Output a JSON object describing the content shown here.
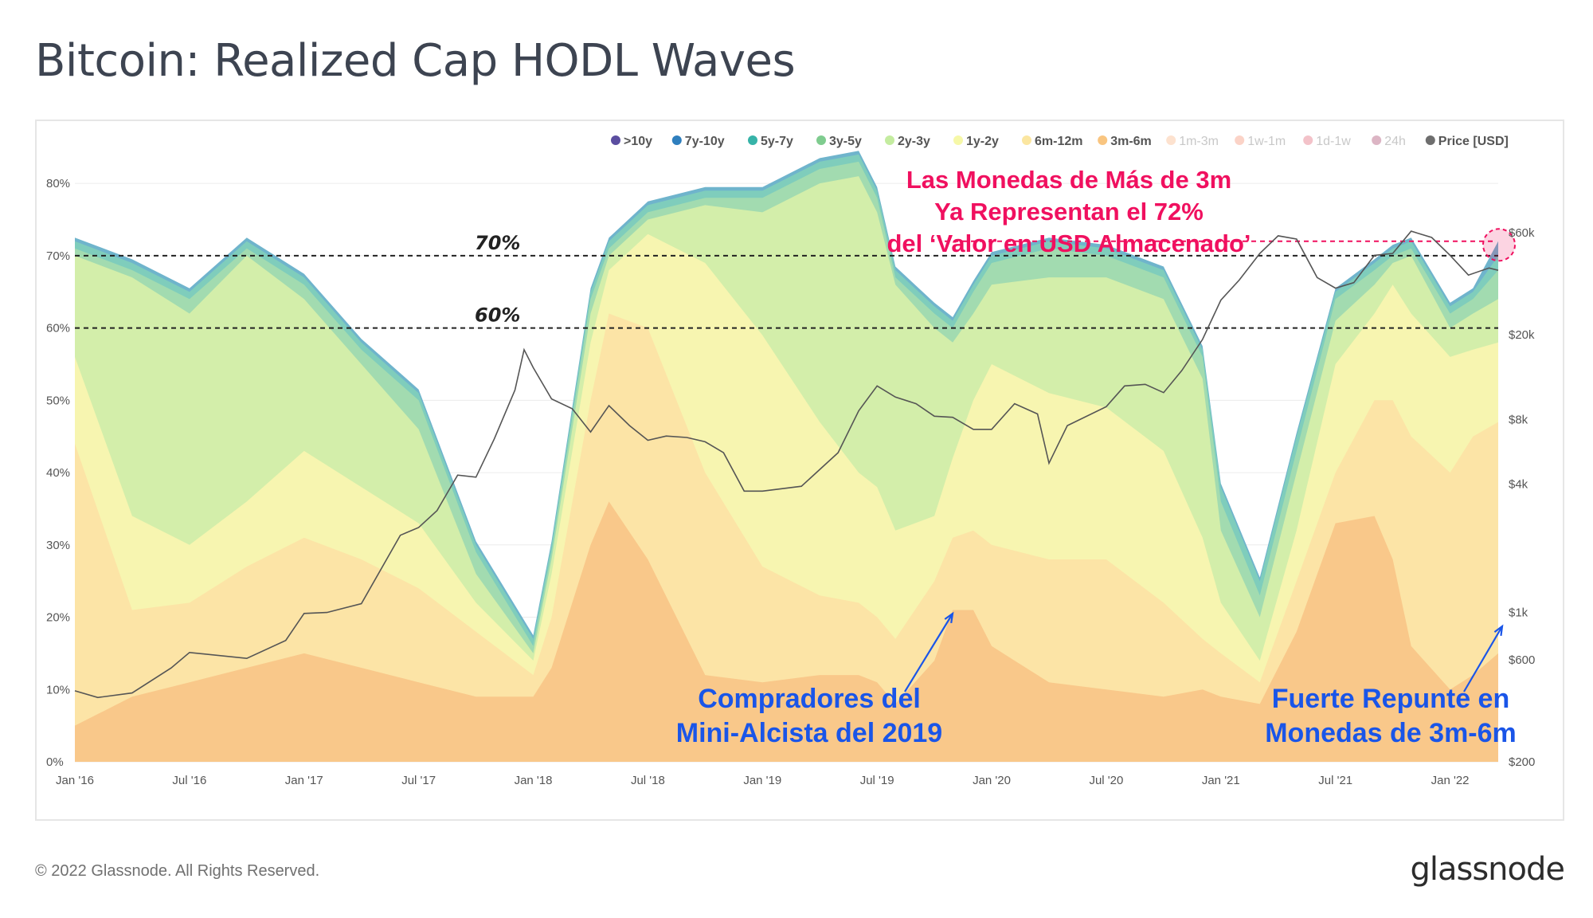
{
  "title": "Bitcoin: Realized Cap HODL Waves",
  "footer": {
    "copyright": "© 2022 Glassnode. All Rights Reserved.",
    "logo": "glassnode"
  },
  "watermark": "glassnode",
  "colors": {
    "accent_red": "#f0105f",
    "accent_blue": "#1a55e8",
    "price_line": "#555555",
    "dashed_line": "#222222"
  },
  "chart_data": {
    "type": "area",
    "stacked": true,
    "title": "Bitcoin: Realized Cap HODL Waves",
    "x_ticks": [
      "Jan '16",
      "Jul '16",
      "Jan '17",
      "Jul '17",
      "Jan '18",
      "Jul '18",
      "Jan '19",
      "Jul '19",
      "Jan '20",
      "Jul '20",
      "Jan '21",
      "Jul '21",
      "Jan '22"
    ],
    "x_range": [
      "2016-01-01",
      "2022-03-20"
    ],
    "y_left": {
      "ticks": [
        "0%",
        "10%",
        "20%",
        "30%",
        "40%",
        "50%",
        "60%",
        "70%",
        "80%"
      ],
      "range": [
        0,
        82
      ]
    },
    "y_right": {
      "scale": "log",
      "ticks": [
        "$200",
        "$600",
        "$1k",
        "$4k",
        "$8k",
        "$20k",
        "$60k"
      ],
      "values": [
        200,
        600,
        1000,
        4000,
        8000,
        20000,
        60000
      ],
      "range": [
        200,
        60000
      ]
    },
    "legend": {
      "placement": "top-right",
      "items": [
        {
          "name": ">10y",
          "color": "#5b4ea0",
          "active": true
        },
        {
          "name": "7y-10y",
          "color": "#2f7fbe",
          "active": true
        },
        {
          "name": "5y-7y",
          "color": "#36b3a8",
          "active": true
        },
        {
          "name": "3y-5y",
          "color": "#7fcc8f",
          "active": true
        },
        {
          "name": "2y-3y",
          "color": "#c4eca0",
          "active": true
        },
        {
          "name": "1y-2y",
          "color": "#f6f8a8",
          "active": true
        },
        {
          "name": "6m-12m",
          "color": "#fbe6a0",
          "active": true
        },
        {
          "name": "3m-6m",
          "color": "#f9c580",
          "active": true
        },
        {
          "name": "1m-3m",
          "color": "#f8a060",
          "active": false
        },
        {
          "name": "1w-1m",
          "color": "#f26e45",
          "active": false
        },
        {
          "name": "1d-1w",
          "color": "#d8344c",
          "active": false
        },
        {
          "name": "24h",
          "color": "#8a0a3c",
          "active": false
        },
        {
          "name": "Price [USD]",
          "color": "#6e6e6e",
          "active": true
        }
      ]
    },
    "stack_colors": [
      "#f9c88a",
      "#fce4a6",
      "#f7f5b0",
      "#d3eeaa",
      "#a2dbb0",
      "#7fcdbc",
      "#6fb4cc"
    ],
    "stack_x": [
      2016.0,
      2016.25,
      2016.5,
      2016.75,
      2017.0,
      2017.25,
      2017.5,
      2017.75,
      2018.0,
      2018.08,
      2018.25,
      2018.33,
      2018.5,
      2018.75,
      2019.0,
      2019.25,
      2019.42,
      2019.5,
      2019.58,
      2019.75,
      2019.83,
      2019.92,
      2020.0,
      2020.25,
      2020.5,
      2020.75,
      2020.92,
      2021.0,
      2021.17,
      2021.33,
      2021.5,
      2021.67,
      2021.75,
      2021.83,
      2022.0,
      2022.1,
      2022.21
    ],
    "stack_cum": [
      [
        5,
        9,
        11,
        13,
        15,
        13,
        11,
        9,
        9,
        13,
        30,
        36,
        28,
        12,
        11,
        12,
        12,
        11,
        8,
        14,
        21,
        21,
        16,
        11,
        10,
        9,
        10,
        9,
        8,
        18,
        33,
        34,
        28,
        16,
        10,
        12,
        15
      ],
      [
        44,
        21,
        22,
        27,
        31,
        28,
        24,
        18,
        12,
        20,
        50,
        62,
        60,
        40,
        27,
        23,
        22,
        20,
        17,
        25,
        31,
        32,
        30,
        28,
        28,
        22,
        17,
        15,
        11,
        25,
        40,
        50,
        50,
        45,
        40,
        45,
        47
      ],
      [
        56,
        34,
        30,
        36,
        43,
        38,
        33,
        22,
        14,
        26,
        58,
        68,
        73,
        69,
        59,
        47,
        40,
        38,
        32,
        34,
        42,
        50,
        55,
        51,
        49,
        43,
        31,
        22,
        14,
        32,
        55,
        62,
        66,
        62,
        56,
        57,
        58
      ],
      [
        70,
        67,
        62,
        70,
        64,
        55,
        46,
        26,
        15,
        28,
        62,
        70,
        75,
        77,
        76,
        80,
        81,
        76,
        66,
        60,
        58,
        62,
        66,
        67,
        67,
        64,
        53,
        32,
        20,
        40,
        61,
        66,
        69,
        70,
        60,
        62,
        64
      ],
      [
        71,
        68,
        64,
        71,
        66,
        57,
        50,
        29,
        16,
        29,
        64,
        71,
        76,
        78,
        78,
        82,
        83,
        78,
        67,
        62,
        60,
        65,
        69,
        71,
        70,
        67,
        56,
        36,
        23,
        43,
        64,
        68,
        70,
        71,
        62,
        64,
        68
      ],
      [
        72,
        69,
        65,
        72,
        67,
        58,
        51,
        30,
        17,
        30,
        65,
        72,
        77,
        79,
        79,
        83,
        84,
        79,
        68,
        63,
        61,
        66,
        70,
        72,
        71,
        68,
        57,
        38,
        25,
        45,
        65,
        69,
        71,
        72,
        63,
        65,
        70
      ],
      [
        72.5,
        69.5,
        65.5,
        72.5,
        67.5,
        58.5,
        51.5,
        30.5,
        17.5,
        30.5,
        65.5,
        72.5,
        77.5,
        79.5,
        79.5,
        83.5,
        84.5,
        79.5,
        68.5,
        63.5,
        61.5,
        66.5,
        70.5,
        72.5,
        71.5,
        68.5,
        57.5,
        38.5,
        25.5,
        45.5,
        65.5,
        69.5,
        71.5,
        72.5,
        63.5,
        65.5,
        72
      ]
    ],
    "price": {
      "name": "Price [USD]",
      "x": [
        2016.0,
        2016.1,
        2016.25,
        2016.42,
        2016.5,
        2016.75,
        2016.92,
        2017.0,
        2017.1,
        2017.25,
        2017.42,
        2017.5,
        2017.58,
        2017.67,
        2017.75,
        2017.83,
        2017.92,
        2017.96,
        2018.0,
        2018.08,
        2018.17,
        2018.25,
        2018.33,
        2018.42,
        2018.5,
        2018.58,
        2018.67,
        2018.75,
        2018.83,
        2018.92,
        2019.0,
        2019.17,
        2019.33,
        2019.42,
        2019.5,
        2019.58,
        2019.67,
        2019.75,
        2019.83,
        2019.92,
        2020.0,
        2020.1,
        2020.2,
        2020.25,
        2020.33,
        2020.5,
        2020.58,
        2020.67,
        2020.75,
        2020.83,
        2020.92,
        2021.0,
        2021.08,
        2021.17,
        2021.25,
        2021.33,
        2021.42,
        2021.5,
        2021.58,
        2021.67,
        2021.75,
        2021.83,
        2021.92,
        2022.0,
        2022.08,
        2022.17,
        2022.21
      ],
      "y": [
        430,
        400,
        420,
        550,
        650,
        610,
        740,
        990,
        1000,
        1100,
        2300,
        2500,
        3000,
        4400,
        4300,
        6500,
        11000,
        17000,
        14000,
        10000,
        9000,
        7000,
        9300,
        7500,
        6400,
        6700,
        6600,
        6300,
        5600,
        3700,
        3700,
        3900,
        5600,
        8800,
        11500,
        10200,
        9500,
        8300,
        8200,
        7200,
        7200,
        9500,
        8500,
        5000,
        7500,
        9200,
        11500,
        11700,
        10700,
        13600,
        19000,
        29000,
        36000,
        48000,
        58000,
        56000,
        37000,
        33000,
        35000,
        47000,
        48000,
        61000,
        57000,
        47000,
        38000,
        41000,
        40000
      ]
    },
    "reference_lines": [
      {
        "label": "70%",
        "value": 70
      },
      {
        "label": "60%",
        "value": 60
      }
    ],
    "annotations": {
      "red": [
        "Las Monedas de Más de 3m",
        "Ya Representan el 72%",
        "del ‘Valor en USD Almacenado’"
      ],
      "blue_left": [
        "Compradores del",
        "Mini-Alcista del 2019"
      ],
      "blue_right": [
        "Fuerte Repunte en",
        "Monedas de 3m-6m"
      ]
    }
  }
}
